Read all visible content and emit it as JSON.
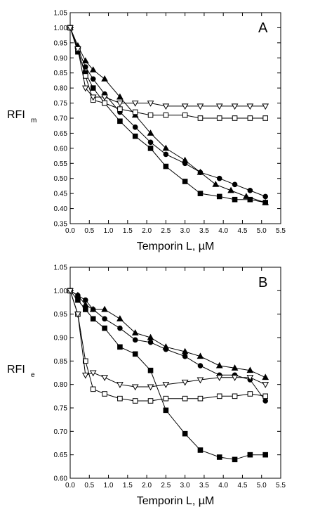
{
  "chart_data": [
    {
      "type": "line",
      "panel_label": "A",
      "xlabel": "Temporin L, µM",
      "ylabel": "RFI",
      "ylabel_subscript": "m",
      "xlim": [
        0.0,
        5.5
      ],
      "ylim": [
        0.35,
        1.05
      ],
      "xticks": [
        "0.0",
        "0.5",
        "1.0",
        "1.5",
        "2.0",
        "2.5",
        "3.0",
        "3.5",
        "4.0",
        "4.5",
        "5.0",
        "5.5"
      ],
      "yticks": [
        "0.35",
        "0.40",
        "0.45",
        "0.50",
        "0.55",
        "0.60",
        "0.65",
        "0.70",
        "0.75",
        "0.80",
        "0.85",
        "0.90",
        "0.95",
        "1.00",
        "1.05"
      ],
      "grid": false,
      "series": [
        {
          "marker": "filled-triangle",
          "x": [
            0.0,
            0.2,
            0.4,
            0.6,
            0.9,
            1.3,
            1.7,
            2.1,
            2.5,
            3.0,
            3.4,
            3.8,
            4.2,
            4.6,
            5.1
          ],
          "y": [
            1.0,
            0.94,
            0.89,
            0.86,
            0.83,
            0.77,
            0.71,
            0.65,
            0.6,
            0.56,
            0.52,
            0.48,
            0.46,
            0.44,
            0.42
          ]
        },
        {
          "marker": "filled-circle",
          "x": [
            0.0,
            0.2,
            0.4,
            0.6,
            0.9,
            1.3,
            1.7,
            2.1,
            2.5,
            3.0,
            3.4,
            3.9,
            4.3,
            4.7,
            5.1
          ],
          "y": [
            1.0,
            0.93,
            0.87,
            0.83,
            0.78,
            0.72,
            0.67,
            0.62,
            0.58,
            0.55,
            0.52,
            0.5,
            0.48,
            0.46,
            0.44
          ]
        },
        {
          "marker": "filled-square",
          "x": [
            0.0,
            0.2,
            0.4,
            0.6,
            0.9,
            1.3,
            1.7,
            2.1,
            2.5,
            3.0,
            3.4,
            3.9,
            4.3,
            4.7,
            5.1
          ],
          "y": [
            1.0,
            0.92,
            0.85,
            0.8,
            0.75,
            0.69,
            0.64,
            0.6,
            0.54,
            0.49,
            0.45,
            0.44,
            0.43,
            0.43,
            0.42
          ]
        },
        {
          "marker": "open-square",
          "x": [
            0.0,
            0.2,
            0.4,
            0.6,
            0.9,
            1.3,
            1.7,
            2.1,
            2.5,
            3.0,
            3.4,
            3.9,
            4.3,
            4.7,
            5.1
          ],
          "y": [
            1.0,
            0.93,
            0.84,
            0.76,
            0.75,
            0.73,
            0.72,
            0.71,
            0.71,
            0.71,
            0.7,
            0.7,
            0.7,
            0.7,
            0.7
          ]
        },
        {
          "marker": "open-triangle-down",
          "x": [
            0.0,
            0.2,
            0.4,
            0.6,
            0.9,
            1.3,
            1.7,
            2.1,
            2.5,
            3.0,
            3.4,
            3.9,
            4.3,
            4.7,
            5.1
          ],
          "y": [
            1.0,
            0.93,
            0.8,
            0.77,
            0.77,
            0.75,
            0.75,
            0.75,
            0.74,
            0.74,
            0.74,
            0.74,
            0.74,
            0.74,
            0.74
          ]
        }
      ]
    },
    {
      "type": "line",
      "panel_label": "B",
      "xlabel": "Temporin L, µM",
      "ylabel": "RFI",
      "ylabel_subscript": "e",
      "xlim": [
        0.0,
        5.5
      ],
      "ylim": [
        0.6,
        1.05
      ],
      "xticks": [
        "0.0",
        "0.5",
        "1.0",
        "1.5",
        "2.0",
        "2.5",
        "3.0",
        "3.5",
        "4.0",
        "4.5",
        "5.0",
        "5.5"
      ],
      "yticks": [
        "0.60",
        "0.65",
        "0.70",
        "0.75",
        "0.80",
        "0.85",
        "0.90",
        "0.95",
        "1.00",
        "1.05"
      ],
      "grid": false,
      "series": [
        {
          "marker": "filled-triangle",
          "x": [
            0.0,
            0.2,
            0.4,
            0.6,
            0.9,
            1.3,
            1.7,
            2.1,
            2.5,
            3.0,
            3.4,
            3.9,
            4.3,
            4.7,
            5.1
          ],
          "y": [
            1.0,
            0.99,
            0.97,
            0.96,
            0.96,
            0.94,
            0.91,
            0.9,
            0.88,
            0.87,
            0.86,
            0.84,
            0.835,
            0.83,
            0.815
          ]
        },
        {
          "marker": "filled-circle",
          "x": [
            0.0,
            0.2,
            0.4,
            0.6,
            0.9,
            1.3,
            1.7,
            2.1,
            2.5,
            3.0,
            3.4,
            3.9,
            4.3,
            4.7,
            5.1
          ],
          "y": [
            1.0,
            0.99,
            0.98,
            0.96,
            0.94,
            0.92,
            0.895,
            0.89,
            0.875,
            0.86,
            0.84,
            0.82,
            0.82,
            0.81,
            0.765
          ]
        },
        {
          "marker": "filled-square",
          "x": [
            0.0,
            0.2,
            0.4,
            0.6,
            0.9,
            1.3,
            1.7,
            2.1,
            2.5,
            3.0,
            3.4,
            3.9,
            4.3,
            4.7,
            5.1
          ],
          "y": [
            1.0,
            0.98,
            0.96,
            0.94,
            0.92,
            0.88,
            0.865,
            0.83,
            0.745,
            0.695,
            0.66,
            0.645,
            0.64,
            0.65,
            0.65
          ]
        },
        {
          "marker": "open-square",
          "x": [
            0.0,
            0.2,
            0.4,
            0.6,
            0.9,
            1.3,
            1.7,
            2.1,
            2.5,
            3.0,
            3.4,
            3.9,
            4.3,
            4.7,
            5.1
          ],
          "y": [
            1.0,
            0.95,
            0.85,
            0.79,
            0.78,
            0.77,
            0.765,
            0.765,
            0.77,
            0.77,
            0.77,
            0.775,
            0.775,
            0.78,
            0.775
          ]
        },
        {
          "marker": "open-triangle-down",
          "x": [
            0.0,
            0.2,
            0.4,
            0.6,
            0.9,
            1.3,
            1.7,
            2.1,
            2.5,
            3.0,
            3.4,
            3.9,
            4.3,
            4.7,
            5.1
          ],
          "y": [
            1.0,
            0.95,
            0.82,
            0.825,
            0.815,
            0.8,
            0.795,
            0.795,
            0.8,
            0.805,
            0.81,
            0.815,
            0.815,
            0.815,
            0.8
          ]
        }
      ]
    }
  ]
}
